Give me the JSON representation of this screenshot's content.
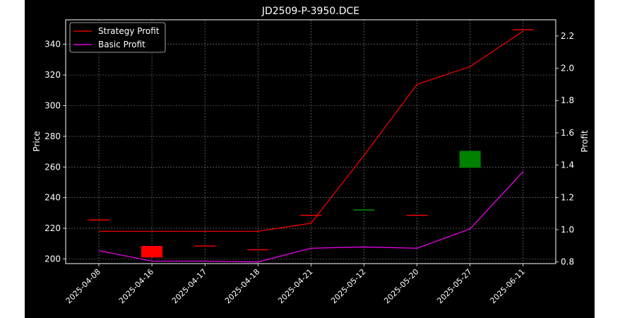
{
  "chart_data": {
    "type": "candlestick+line",
    "title": "JD2509-P-3950.DCE",
    "ylabel_left": "Price",
    "ylabel_right": "Profit",
    "categories": [
      "2025-04-08",
      "2025-04-16",
      "2025-04-17",
      "2025-04-18",
      "2025-04-21",
      "2025-05-12",
      "2025-05-20",
      "2025-05-27",
      "2025-06-11"
    ],
    "ylim_left": [
      197,
      356
    ],
    "ylim_right": [
      0.79,
      2.3
    ],
    "yticks_left": [
      200,
      220,
      240,
      260,
      280,
      300,
      320,
      340
    ],
    "yticks_right": [
      0.8,
      1.0,
      1.2,
      1.4,
      1.6,
      1.8,
      2.0,
      2.2
    ],
    "grid": true,
    "legend_position": "top-left",
    "candles": [
      {
        "date": "2025-04-08",
        "open": 225.5,
        "close": 225.5,
        "color": "#ff0000"
      },
      {
        "date": "2025-04-16",
        "open": 208.5,
        "close": 201.0,
        "color": "#ff0000"
      },
      {
        "date": "2025-04-17",
        "open": 208.5,
        "close": 208.5,
        "color": "#ff0000"
      },
      {
        "date": "2025-04-18",
        "open": 206.0,
        "close": 206.0,
        "color": "#ff0000"
      },
      {
        "date": "2025-04-21",
        "open": 228.5,
        "close": 228.5,
        "color": "#ff0000"
      },
      {
        "date": "2025-05-12",
        "open": 232.0,
        "close": 232.0,
        "color": "#00a000"
      },
      {
        "date": "2025-05-20",
        "open": 228.5,
        "close": 228.5,
        "color": "#ff0000"
      },
      {
        "date": "2025-05-27",
        "open": 259.5,
        "close": 270.5,
        "color": "#008000"
      },
      {
        "date": "2025-06-11",
        "open": 349.5,
        "close": 349.5,
        "color": "#ff0000"
      }
    ],
    "series": [
      {
        "name": "Strategy Profit",
        "color": "#ff0000",
        "values": [
          0.99,
          0.99,
          0.99,
          0.99,
          1.04,
          1.46,
          1.9,
          2.01,
          2.23
        ]
      },
      {
        "name": "Basic Profit",
        "color": "#ff00ff",
        "values": [
          0.87,
          0.805,
          0.805,
          0.8,
          0.885,
          0.893,
          0.885,
          1.005,
          1.36
        ]
      }
    ]
  }
}
